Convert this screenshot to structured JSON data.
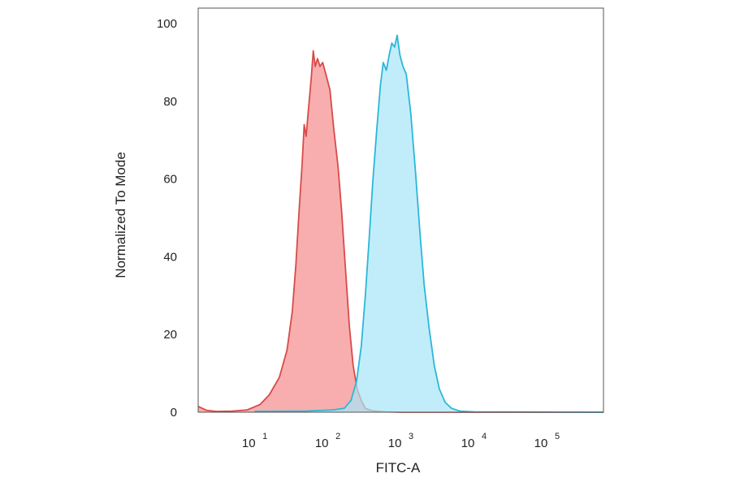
{
  "chart_data": {
    "type": "area",
    "title": "",
    "xlabel": "FITC-A",
    "ylabel": "Normalized To Mode",
    "x_scale": "log",
    "xlim": [
      1.7,
      600000
    ],
    "ylim": [
      0,
      104
    ],
    "y_ticks": [
      {
        "value": 0,
        "label": "0"
      },
      {
        "value": 20,
        "label": "20"
      },
      {
        "value": 40,
        "label": "40"
      },
      {
        "value": 60,
        "label": "60"
      },
      {
        "value": 80,
        "label": "80"
      },
      {
        "value": 100,
        "label": "100"
      }
    ],
    "x_ticks": [
      {
        "value": 10,
        "base": "10",
        "exponent": "1"
      },
      {
        "value": 100,
        "base": "10",
        "exponent": "2"
      },
      {
        "value": 1000,
        "base": "10",
        "exponent": "3"
      },
      {
        "value": 10000,
        "base": "10",
        "exponent": "4"
      },
      {
        "value": 100000,
        "base": "10",
        "exponent": "5"
      }
    ],
    "grid": false,
    "legend": "none",
    "series": [
      {
        "color": "#d94a4a",
        "fill": "#f7a0a0",
        "points": [
          [
            1.7,
            1.5
          ],
          [
            2.2,
            0.5
          ],
          [
            3,
            0.2
          ],
          [
            5,
            0.3
          ],
          [
            8,
            0.6
          ],
          [
            12,
            2
          ],
          [
            16,
            4.5
          ],
          [
            22,
            9
          ],
          [
            28,
            16
          ],
          [
            33,
            26
          ],
          [
            37,
            38
          ],
          [
            41,
            52
          ],
          [
            45,
            64
          ],
          [
            48,
            74
          ],
          [
            51,
            71
          ],
          [
            55,
            78
          ],
          [
            60,
            86
          ],
          [
            64,
            93
          ],
          [
            68,
            89
          ],
          [
            73,
            91
          ],
          [
            79,
            89
          ],
          [
            86,
            90
          ],
          [
            95,
            87
          ],
          [
            108,
            83
          ],
          [
            122,
            73
          ],
          [
            140,
            63
          ],
          [
            156,
            52
          ],
          [
            175,
            38
          ],
          [
            200,
            22
          ],
          [
            225,
            12
          ],
          [
            255,
            6
          ],
          [
            290,
            3
          ],
          [
            330,
            1
          ],
          [
            400,
            0.4
          ],
          [
            600,
            0.1
          ],
          [
            1000,
            0
          ],
          [
            600000,
            0
          ]
        ]
      },
      {
        "color": "#2bb7d8",
        "fill": "#a6e6f8",
        "points": [
          [
            10,
            0.2
          ],
          [
            50,
            0.3
          ],
          [
            120,
            0.6
          ],
          [
            170,
            1
          ],
          [
            210,
            3
          ],
          [
            250,
            8
          ],
          [
            290,
            17
          ],
          [
            330,
            30
          ],
          [
            370,
            44
          ],
          [
            420,
            60
          ],
          [
            470,
            72
          ],
          [
            530,
            84
          ],
          [
            580,
            90
          ],
          [
            640,
            88
          ],
          [
            700,
            92
          ],
          [
            760,
            95
          ],
          [
            830,
            94
          ],
          [
            900,
            97
          ],
          [
            980,
            92
          ],
          [
            1080,
            89
          ],
          [
            1200,
            87
          ],
          [
            1380,
            77
          ],
          [
            1600,
            62
          ],
          [
            1850,
            46
          ],
          [
            2100,
            33
          ],
          [
            2450,
            22
          ],
          [
            2900,
            12
          ],
          [
            3400,
            6
          ],
          [
            4100,
            2.5
          ],
          [
            5000,
            1
          ],
          [
            6500,
            0.3
          ],
          [
            10000,
            0.1
          ],
          [
            600000,
            0
          ]
        ]
      }
    ]
  }
}
